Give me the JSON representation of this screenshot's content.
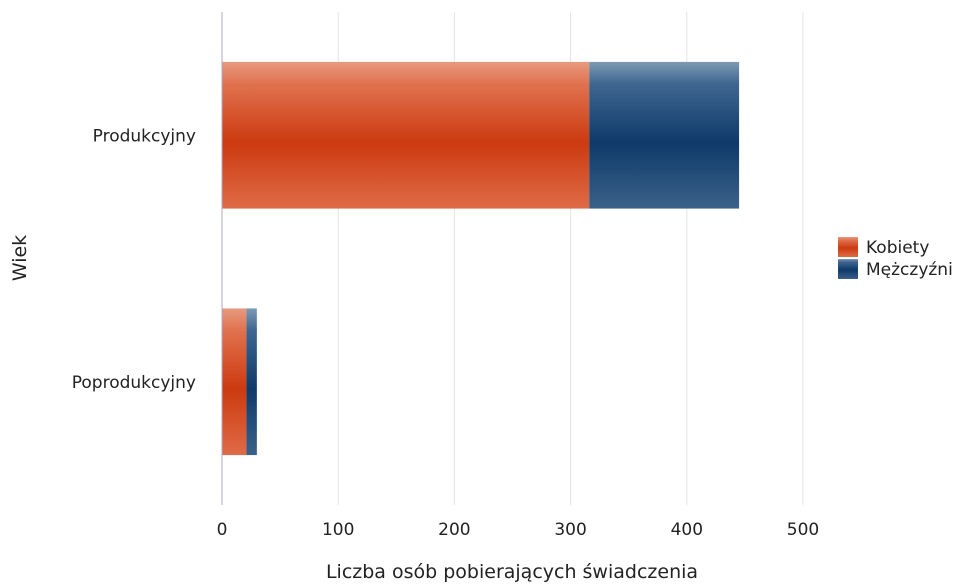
{
  "chart_data": {
    "type": "bar",
    "orientation": "horizontal",
    "stacked": true,
    "categories": [
      "Produkcyjny",
      "Poprodukcyjny"
    ],
    "series": [
      {
        "name": "Kobiety",
        "values": [
          316,
          21
        ],
        "color": "#cc3a10"
      },
      {
        "name": "Mężczyźni",
        "values": [
          129,
          9
        ],
        "color": "#123f6b"
      }
    ],
    "xlabel": "Liczba osób pobierających świadczenia",
    "ylabel": "Wiek",
    "xlim": [
      0,
      500
    ],
    "xticks": [
      0,
      100,
      200,
      300,
      400,
      500
    ],
    "grid": "vertical",
    "legend": "right"
  }
}
